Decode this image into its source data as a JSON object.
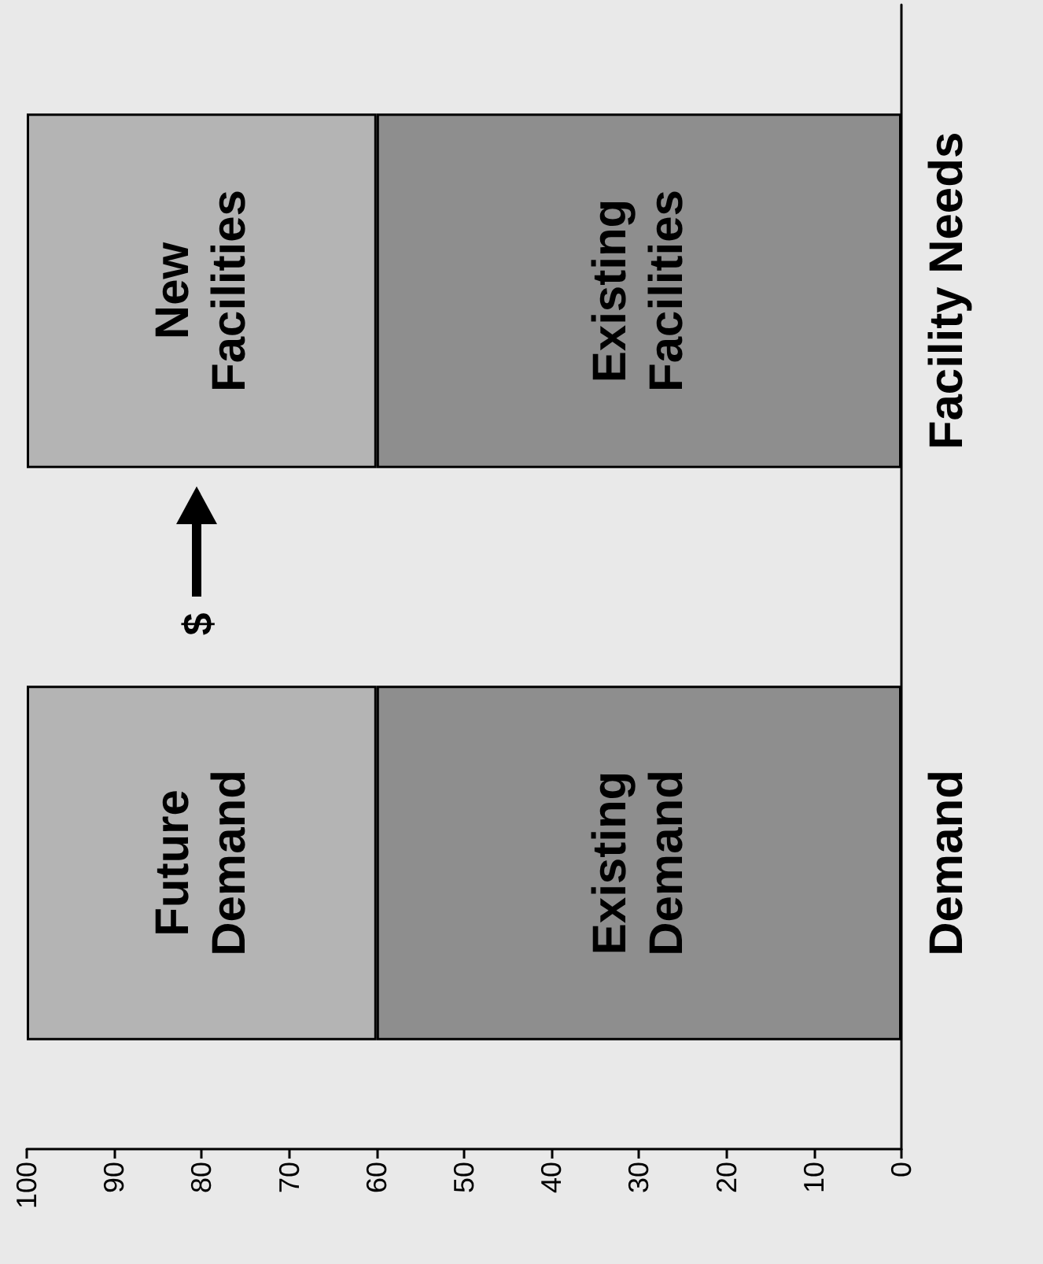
{
  "chart_data": {
    "type": "bar",
    "orientation": "horizontal",
    "stacked": true,
    "categories": [
      "Facility Needs",
      "Demand"
    ],
    "series": [
      {
        "color": "#8e8e8e",
        "values": [
          60,
          60
        ],
        "value_labels": [
          "Existing\nFacilities",
          "Existing\nDemand"
        ]
      },
      {
        "color": "#b4b4b4",
        "values": [
          40,
          40
        ],
        "value_labels": [
          "New\nFacilities",
          "Future\nDemand"
        ]
      }
    ],
    "xlim": [
      100,
      0
    ],
    "xticks": [
      0,
      10,
      20,
      30,
      40,
      50,
      60,
      70,
      80,
      90,
      100
    ],
    "grid": false,
    "annotations": [
      "$"
    ]
  }
}
